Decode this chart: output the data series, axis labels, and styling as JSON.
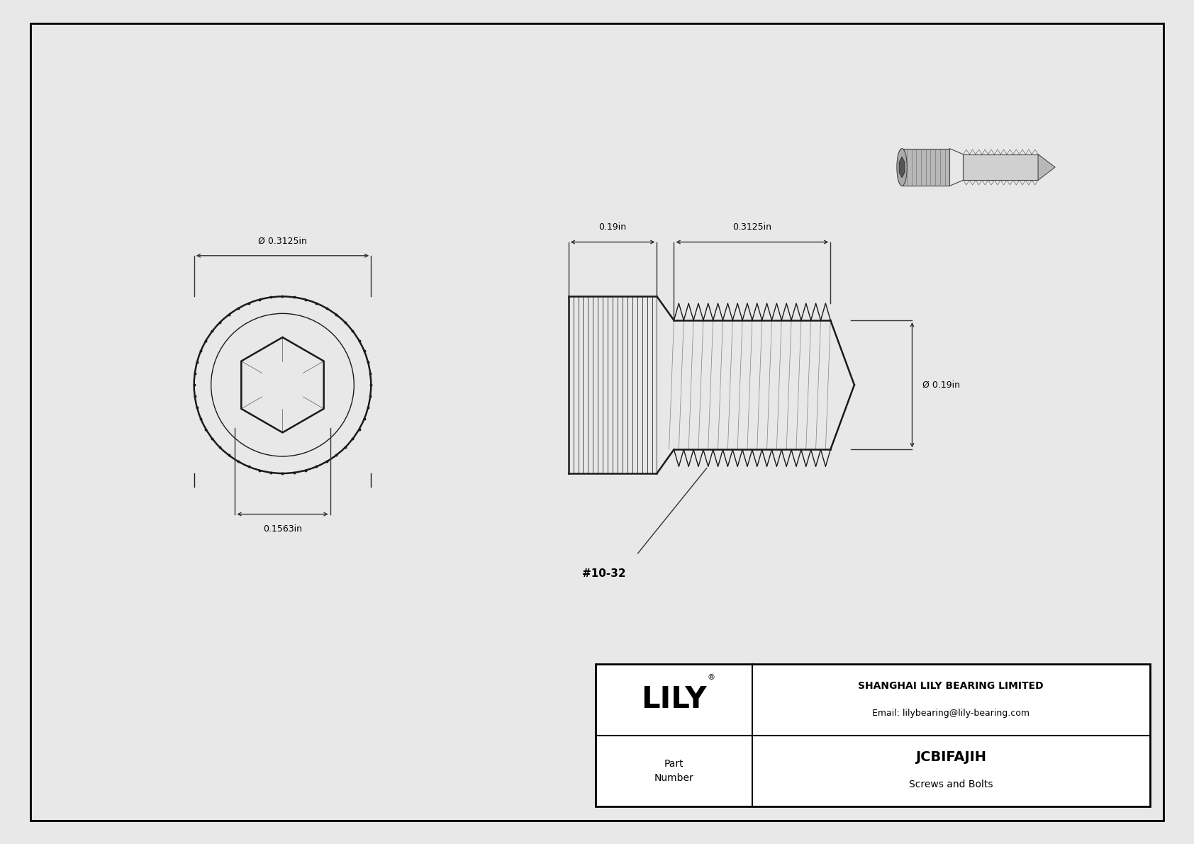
{
  "bg_color": "#e8e8e8",
  "drawing_bg": "#ffffff",
  "border_color": "#000000",
  "line_color": "#1a1a1a",
  "dim_color": "#333333",
  "title_company": "SHANGHAI LILY BEARING LIMITED",
  "title_email": "Email: lilybearing@lily-bearing.com",
  "part_number": "JCBIFAJIH",
  "part_category": "Screws and Bolts",
  "part_label": "Part\nNumber",
  "lily_text": "LILY",
  "dim_head_diameter": "Ø 0.3125in",
  "dim_hex_socket": "0.1563in",
  "dim_head_length": "0.19in",
  "dim_thread_length": "0.3125in",
  "dim_thread_diameter": "Ø 0.19in",
  "thread_label": "#10-32"
}
